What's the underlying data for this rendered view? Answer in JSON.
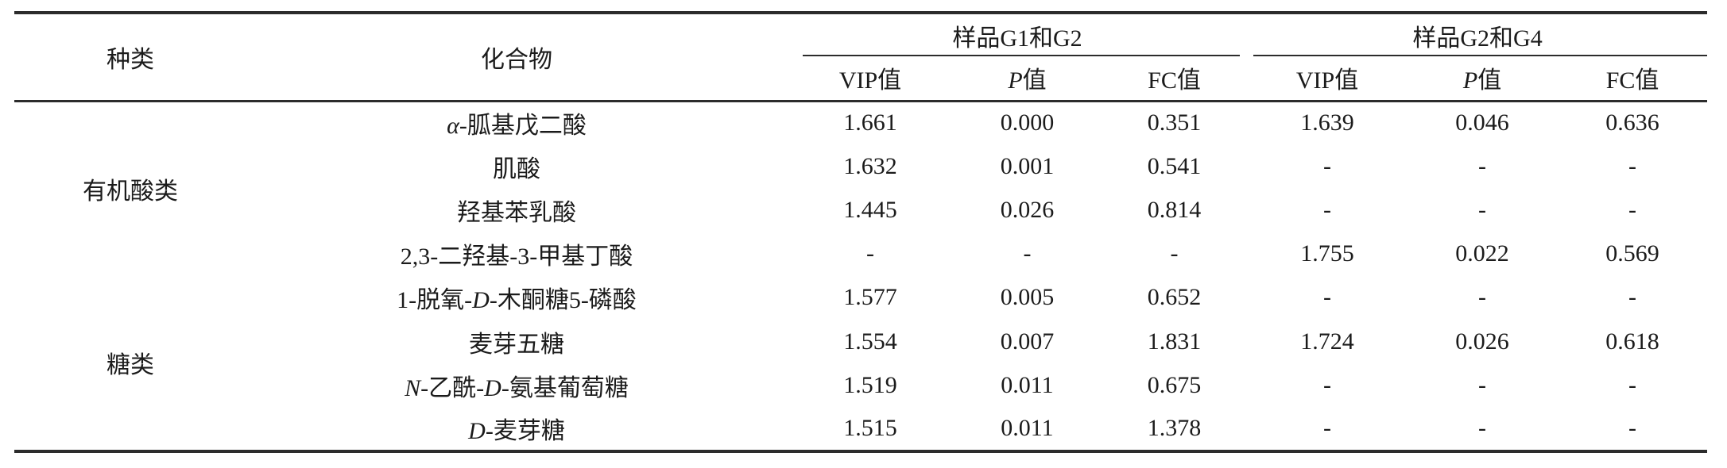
{
  "page": {
    "background": "#ffffff",
    "text_color": "#1b1b1b",
    "rule_color": "#2c2c2c"
  },
  "table": {
    "empty_marker": "-",
    "header": {
      "category": "种类",
      "compound": "化合物",
      "groups": [
        {
          "label": "样品G1和G2"
        },
        {
          "label": "样品G2和G4"
        }
      ],
      "subheaders": [
        {
          "segments": [
            [
              "VIP值",
              false
            ]
          ]
        },
        {
          "segments": [
            [
              "P",
              true
            ],
            [
              "值",
              false
            ]
          ]
        },
        {
          "segments": [
            [
              "FC值",
              false
            ]
          ]
        },
        {
          "segments": [
            [
              "VIP值",
              false
            ]
          ]
        },
        {
          "segments": [
            [
              "P",
              true
            ],
            [
              "值",
              false
            ]
          ]
        },
        {
          "segments": [
            [
              "FC值",
              false
            ]
          ]
        }
      ]
    },
    "body": {
      "groups": [
        {
          "category": "有机酸类",
          "rows": [
            {
              "compound_segments": [
                [
                  "α",
                  true
                ],
                [
                  "-胍基戊二酸",
                  false
                ]
              ],
              "values": [
                "1.661",
                "0.000",
                "0.351",
                "1.639",
                "0.046",
                "0.636"
              ]
            },
            {
              "compound_segments": [
                [
                  "肌酸",
                  false
                ]
              ],
              "values": [
                "1.632",
                "0.001",
                "0.541",
                "-",
                "-",
                "-"
              ]
            },
            {
              "compound_segments": [
                [
                  "羟基苯乳酸",
                  false
                ]
              ],
              "values": [
                "1.445",
                "0.026",
                "0.814",
                "-",
                "-",
                "-"
              ]
            },
            {
              "compound_segments": [
                [
                  "2,3-二羟基-3-甲基丁酸",
                  false
                ]
              ],
              "values": [
                "-",
                "-",
                "-",
                "1.755",
                "0.022",
                "0.569"
              ]
            }
          ]
        },
        {
          "category": "糖类",
          "rows": [
            {
              "compound_segments": [
                [
                  "1-脱氧-",
                  false
                ],
                [
                  "D",
                  true
                ],
                [
                  "-木酮糖5-磷酸",
                  false
                ]
              ],
              "values": [
                "1.577",
                "0.005",
                "0.652",
                "-",
                "-",
                "-"
              ]
            },
            {
              "compound_segments": [
                [
                  "麦芽五糖",
                  false
                ]
              ],
              "values": [
                "1.554",
                "0.007",
                "1.831",
                "1.724",
                "0.026",
                "0.618"
              ]
            },
            {
              "compound_segments": [
                [
                  "N",
                  true
                ],
                [
                  "-乙酰-",
                  false
                ],
                [
                  "D",
                  true
                ],
                [
                  "-氨基葡萄糖",
                  false
                ]
              ],
              "values": [
                "1.519",
                "0.011",
                "0.675",
                "-",
                "-",
                "-"
              ]
            },
            {
              "compound_segments": [
                [
                  "D",
                  true
                ],
                [
                  "-麦芽糖",
                  false
                ]
              ],
              "values": [
                "1.515",
                "0.011",
                "1.378",
                "-",
                "-",
                "-"
              ]
            }
          ]
        }
      ]
    }
  }
}
